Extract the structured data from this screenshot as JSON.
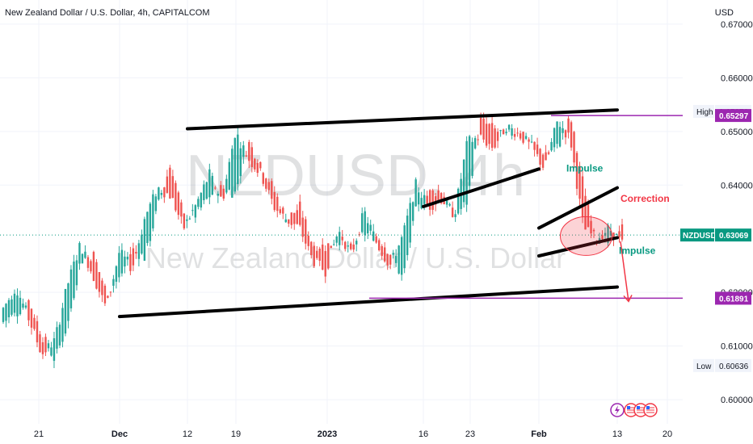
{
  "header": {
    "title": "New Zealand Dollar / U.S. Dollar, 4h, CAPITALCOM",
    "currency": "USD"
  },
  "watermark": {
    "symbol": "NZDUSD, 4h",
    "name": "New Zealand Dollar / U.S. Dollar"
  },
  "colors": {
    "up": "#26a69a",
    "down": "#ef5350",
    "trendline": "#000000",
    "level": "#9c27b0",
    "impulse_text": "#089981",
    "correction_text": "#f23645",
    "arrow": "#f23645",
    "last_price": "#089981"
  },
  "chart_data": {
    "type": "candlestick",
    "title": "New Zealand Dollar / U.S. Dollar, 4h, CAPITALCOM",
    "ylabel": "USD",
    "ylim": [
      0.5955,
      0.6745
    ],
    "x_ticks": [
      "21",
      "Dec",
      "12",
      "19",
      "2023",
      "16",
      "23",
      "Feb",
      "13",
      "20"
    ],
    "y_ticks": [
      "0.67000",
      "0.66000",
      "0.65000",
      "0.64000",
      "0.62000",
      "0.61000",
      "0.60000"
    ],
    "price_labels": [
      {
        "name": "High",
        "value": "0.65373",
        "kind": "high"
      },
      {
        "name": "",
        "value": "0.65297",
        "kind": "level"
      },
      {
        "name": "NZDUSD",
        "value": "0.63069",
        "kind": "last"
      },
      {
        "name": "",
        "value": "0.61891",
        "kind": "level"
      },
      {
        "name": "Low",
        "value": "0.60636",
        "kind": "low"
      }
    ],
    "ohlc_approx_path": [
      [
        0.6145,
        0.617
      ],
      [
        0.616,
        0.621
      ],
      [
        0.6185,
        0.615
      ],
      [
        0.612,
        0.6085
      ],
      [
        0.6075,
        0.611
      ],
      [
        0.614,
        0.6215
      ],
      [
        0.626,
        0.629
      ],
      [
        0.627,
        0.623
      ],
      [
        0.62,
        0.617
      ],
      [
        0.6225,
        0.6275
      ],
      [
        0.628,
        0.6245
      ],
      [
        0.6265,
        0.634
      ],
      [
        0.636,
        0.6395
      ],
      [
        0.644,
        0.638
      ],
      [
        0.634,
        0.632
      ],
      [
        0.6345,
        0.6365
      ],
      [
        0.638,
        0.642
      ],
      [
        0.6395,
        0.637
      ],
      [
        0.6385,
        0.65
      ],
      [
        0.648,
        0.645
      ],
      [
        0.644,
        0.642
      ],
      [
        0.639,
        0.636
      ],
      [
        0.6335,
        0.6335
      ],
      [
        0.636,
        0.632
      ],
      [
        0.629,
        0.626
      ],
      [
        0.6285,
        0.624
      ],
      [
        0.63,
        0.6315
      ],
      [
        0.628,
        0.627
      ],
      [
        0.631,
        0.635
      ],
      [
        0.6305,
        0.629
      ],
      [
        0.6275,
        0.625
      ],
      [
        0.6225,
        0.6305
      ],
      [
        0.635,
        0.64
      ],
      [
        0.6385,
        0.636
      ],
      [
        0.639,
        0.6375
      ],
      [
        0.634,
        0.6345
      ],
      [
        0.637,
        0.648
      ],
      [
        0.652,
        0.649
      ],
      [
        0.6505,
        0.647
      ],
      [
        0.649,
        0.651
      ],
      [
        0.6505,
        0.6495
      ],
      [
        0.648,
        0.647
      ],
      [
        0.646,
        0.643
      ],
      [
        0.647,
        0.652
      ],
      [
        0.6525,
        0.6485
      ],
      [
        0.64,
        0.632
      ],
      [
        0.6305,
        0.63
      ],
      [
        0.629,
        0.632
      ],
      [
        0.633,
        0.629
      ]
    ],
    "annotations": [
      {
        "text": "Impulse",
        "type": "label"
      },
      {
        "text": "Correction",
        "type": "label"
      },
      {
        "text": "Impulse",
        "type": "label"
      }
    ],
    "trendlines": [
      {
        "name": "channel-upper",
        "from": [
          "12",
          0.6505
        ],
        "to": [
          "13",
          0.654
        ]
      },
      {
        "name": "channel-lower",
        "from": [
          "Dec",
          0.6155
        ],
        "to": [
          "13",
          0.621
        ]
      },
      {
        "name": "wedge-lower",
        "from": [
          "16",
          0.636
        ],
        "to": [
          "Feb",
          0.643
        ]
      },
      {
        "name": "flag-upper",
        "from": [
          "Feb",
          0.632
        ],
        "to": [
          "13",
          0.6395
        ]
      },
      {
        "name": "flag-lower",
        "from": [
          "Feb",
          0.6268
        ],
        "to": [
          "13",
          0.6302
        ]
      }
    ],
    "horizontal_levels": [
      0.65297,
      0.61891
    ]
  }
}
